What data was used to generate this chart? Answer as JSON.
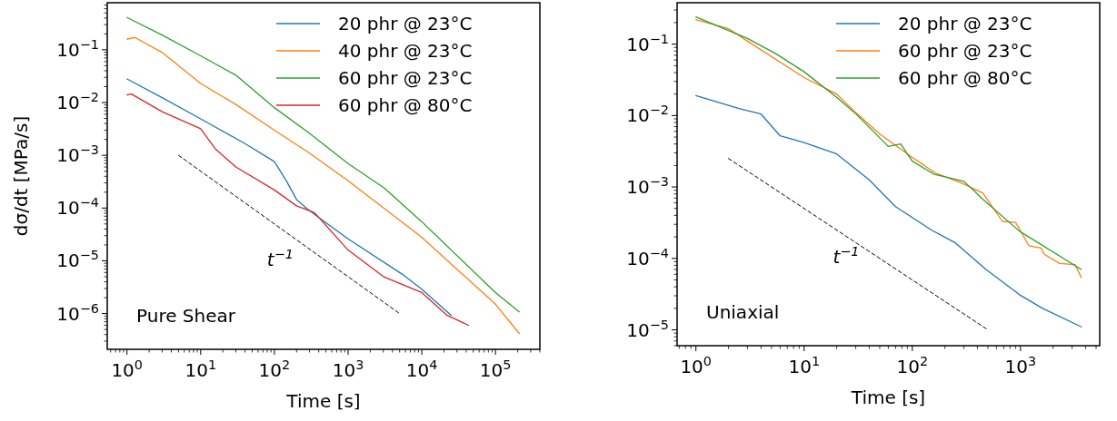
{
  "chart_data": [
    {
      "type": "line",
      "xlabel": "Time [s]",
      "ylabel": "dσ/dt [MPa/s]",
      "log": "xy",
      "legend": "top right",
      "xlim": [
        0.54,
        400000
      ],
      "ylim": [
        2.1e-07,
        0.78
      ],
      "xticks": [
        {
          "value": 1,
          "label": "10$^{0}$"
        },
        {
          "value": 10,
          "label": "10$^{1}$"
        },
        {
          "value": 100,
          "label": "10$^{2}$"
        },
        {
          "value": 1000,
          "label": "10$^{3}$"
        },
        {
          "value": 10000,
          "label": "10$^{4}$"
        },
        {
          "value": 100000,
          "label": "10$^{5}$"
        }
      ],
      "yticks": [
        {
          "value": 1e-06,
          "label": "10$^{−6}$"
        },
        {
          "value": 1e-05,
          "label": "10$^{−5}$"
        },
        {
          "value": 0.0001,
          "label": "10$^{−4}$"
        },
        {
          "value": 0.001,
          "label": "10$^{−3}$"
        },
        {
          "value": 0.01,
          "label": "10$^{−2}$"
        },
        {
          "value": 0.1,
          "label": "10$^{−1}$"
        }
      ],
      "annotations": [
        "Pure Shear",
        "t$^{−1}$"
      ],
      "series": [
        {
          "name": "20 phr @ 23°C",
          "color": "#1f77b4",
          "x": [
            1,
            3,
            10,
            39,
            100,
            145,
            200,
            280,
            350,
            1000,
            5400,
            10000,
            25000
          ],
          "values": [
            0.028,
            0.0124,
            0.0049,
            0.0017,
            0.00076,
            0.00033,
            0.000145,
            9.6e-05,
            7.6e-05,
            2.6e-05,
            5.6e-06,
            2.9e-06,
            9.3e-07
          ]
        },
        {
          "name": "40 phr @ 23°C",
          "color": "#ff7f0e",
          "x": [
            1,
            1.3,
            3,
            10,
            30,
            100,
            300,
            1000,
            10000,
            100000,
            210000
          ],
          "values": [
            0.16,
            0.17,
            0.089,
            0.023,
            0.0092,
            0.003,
            0.0011,
            0.00033,
            2.8e-05,
            1.5e-06,
            4.2e-07
          ]
        },
        {
          "name": "60 phr @ 23°C",
          "color": "#2ca02c",
          "x": [
            1,
            3,
            10,
            30,
            100,
            300,
            1000,
            3100,
            10000,
            100000,
            210000
          ],
          "values": [
            0.41,
            0.19,
            0.077,
            0.033,
            0.008,
            0.0026,
            0.0007,
            0.00024,
            5.5e-05,
            2.5e-06,
            1.08e-06
          ]
        },
        {
          "name": "60 phr @ 80°C",
          "color": "#d62728",
          "x": [
            1,
            1.15,
            3,
            10,
            16,
            30,
            100,
            200,
            350,
            1000,
            3100,
            10000,
            22000,
            43000
          ],
          "values": [
            0.014,
            0.0145,
            0.0067,
            0.0032,
            0.0013,
            0.0006,
            0.00022,
            0.00011,
            8.2e-05,
            1.6e-05,
            4.9e-06,
            2.5e-06,
            9.3e-07,
            6e-07
          ]
        },
        {
          "color": "#000000",
          "line_style": "dashed",
          "x": [
            5,
            5000
          ],
          "values": [
            0.001,
            1e-06
          ]
        }
      ]
    },
    {
      "type": "line",
      "xlabel": "Time [s]",
      "log": "xy",
      "legend": "top right",
      "xlim": [
        0.67,
        5400
      ],
      "ylim": [
        6e-06,
        0.38
      ],
      "xticks": [
        {
          "value": 1,
          "label": "10$^{0}$"
        },
        {
          "value": 10,
          "label": "10$^{1}$"
        },
        {
          "value": 100,
          "label": "10$^{2}$"
        },
        {
          "value": 1000,
          "label": "10$^{3}$"
        }
      ],
      "yticks": [
        {
          "value": 1e-05,
          "label": "10$^{−5}$"
        },
        {
          "value": 0.0001,
          "label": "10$^{−4}$"
        },
        {
          "value": 0.001,
          "label": "10$^{−3}$"
        },
        {
          "value": 0.01,
          "label": "10$^{−2}$"
        },
        {
          "value": 0.1,
          "label": "10$^{−1}$"
        }
      ],
      "annotations": [
        "Uniaxial",
        "t$^{−1}$"
      ],
      "series": [
        {
          "name": "20 phr @ 23°C",
          "color": "#1f77b4",
          "x": [
            1,
            2.5,
            4,
            6,
            10,
            20,
            40,
            70,
            150,
            250,
            480,
            980,
            1600,
            3650
          ],
          "values": [
            0.019,
            0.0125,
            0.0105,
            0.0052,
            0.0042,
            0.0029,
            0.00126,
            0.00053,
            0.00025,
            0.000165,
            7e-05,
            3.1e-05,
            2e-05,
            1.1e-05
          ]
        },
        {
          "name": "60 phr @ 23°C",
          "color": "#ff7f0e",
          "x": [
            1,
            2,
            3,
            10,
            20,
            30,
            50,
            100,
            160,
            300,
            450,
            680,
            900,
            1200,
            1550,
            1650,
            2300,
            3200,
            3650
          ],
          "values": [
            0.22,
            0.165,
            0.11,
            0.034,
            0.02,
            0.011,
            0.0055,
            0.0026,
            0.0016,
            0.0011,
            0.00082,
            0.00033,
            0.00032,
            0.00015,
            0.00014,
            0.000115,
            8.5e-05,
            8.2e-05,
            5.4e-05
          ]
        },
        {
          "name": "60 phr @ 80°C",
          "color": "#2ca02c",
          "x": [
            1,
            3,
            5.6,
            10,
            20,
            30,
            60,
            78,
            100,
            160,
            300,
            380,
            450,
            980,
            3650
          ],
          "values": [
            0.24,
            0.12,
            0.072,
            0.041,
            0.018,
            0.0106,
            0.0037,
            0.004,
            0.0023,
            0.0015,
            0.0012,
            0.00086,
            0.00067,
            0.00024,
            7e-05
          ]
        },
        {
          "color": "#000000",
          "line_style": "dashed",
          "x": [
            2,
            500
          ],
          "values": [
            0.0025,
            1e-05
          ]
        }
      ]
    }
  ]
}
